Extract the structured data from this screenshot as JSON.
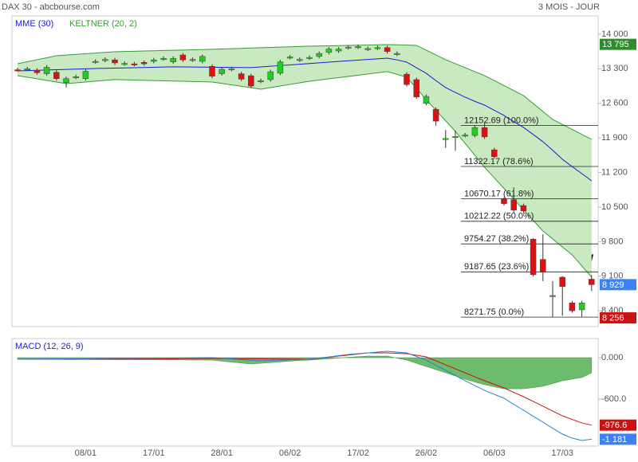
{
  "chart_data": [
    {
      "type": "candlestick",
      "title": "DAX 30 - abcbourse.com",
      "subtitle": "3 MOIS - JOUR",
      "categories": [
        null,
        null,
        null,
        null,
        null,
        null,
        null,
        "08/01",
        null,
        null,
        null,
        null,
        null,
        null,
        "17/01",
        null,
        null,
        null,
        null,
        null,
        null,
        "28/01",
        null,
        null,
        null,
        null,
        null,
        null,
        "06/02",
        null,
        null,
        null,
        null,
        null,
        null,
        "17/02",
        null,
        null,
        null,
        null,
        null,
        null,
        "26/02",
        null,
        null,
        null,
        null,
        null,
        null,
        "06/03",
        null,
        null,
        null,
        null,
        null,
        null,
        "17/03",
        null,
        null,
        null
      ],
      "open": [
        13280,
        13290,
        13270,
        13200,
        13230,
        13020,
        13130,
        13100,
        13440,
        13470,
        13480,
        13400,
        13400,
        13430,
        13450,
        13500,
        13440,
        13580,
        13480,
        13450,
        13350,
        13200,
        13290,
        13200,
        13160,
        13050,
        13080,
        13210,
        13530,
        13480,
        13520,
        13550,
        13630,
        13660,
        13730,
        13740,
        13700,
        13720,
        13730,
        13600,
        13190,
        13080,
        12600,
        12480,
        11880,
        11920,
        11950,
        11950,
        12110,
        11660,
        10660,
        10650,
        10530,
        9850,
        9440,
        8700,
        9080,
        8560,
        8420,
        9040
      ],
      "high": [
        13320,
        13340,
        13310,
        13370,
        13270,
        13140,
        13180,
        13290,
        13490,
        13530,
        13520,
        13450,
        13440,
        13470,
        13520,
        13550,
        13550,
        13620,
        13530,
        13590,
        13390,
        13330,
        13340,
        13240,
        13200,
        13100,
        13280,
        13480,
        13580,
        13530,
        13570,
        13650,
        13740,
        13740,
        13780,
        13790,
        13750,
        13770,
        13770,
        13650,
        13230,
        13120,
        12780,
        12520,
        12060,
        12050,
        12000,
        12150,
        12200,
        11700,
        10700,
        10900,
        10570,
        9870,
        9950,
        9000,
        9100,
        8600,
        8600,
        9120
      ],
      "low": [
        13240,
        13250,
        13180,
        13160,
        13060,
        12920,
        13090,
        13060,
        13400,
        13430,
        13380,
        13360,
        13350,
        13360,
        13410,
        13460,
        13400,
        13440,
        13440,
        13410,
        13110,
        13160,
        13250,
        13050,
        12910,
        13010,
        13040,
        13170,
        13490,
        13440,
        13480,
        13510,
        13590,
        13620,
        13690,
        13700,
        13660,
        13680,
        13610,
        13560,
        12940,
        12690,
        12560,
        12150,
        11700,
        11640,
        11910,
        11910,
        11880,
        11480,
        10530,
        10380,
        10380,
        9100,
        9000,
        8270,
        8300,
        8360,
        8280,
        8800
      ],
      "close": [
        13270,
        13300,
        13220,
        13330,
        13100,
        13100,
        13140,
        13250,
        13450,
        13490,
        13420,
        13410,
        13390,
        13400,
        13480,
        13510,
        13510,
        13480,
        13490,
        13550,
        13150,
        13290,
        13300,
        13090,
        12950,
        13060,
        13240,
        13440,
        13540,
        13490,
        13530,
        13610,
        13700,
        13700,
        13740,
        13750,
        13710,
        13730,
        13650,
        13610,
        12980,
        12730,
        12740,
        12240,
        11890,
        11930,
        11960,
        12110,
        11920,
        11520,
        10570,
        10440,
        10420,
        9130,
        9180,
        8710,
        8890,
        8400,
        8560,
        8929
      ],
      "up_color": "#22cc22",
      "down_color": "#dd1111",
      "series": [
        {
          "name": "MME (30)",
          "color": "#1a1adb",
          "values": [
            13258,
            13264,
            13270,
            13276,
            13282,
            13288,
            13294,
            13300,
            13306,
            13310,
            13314,
            13318,
            13322,
            13326,
            13330,
            13335,
            13339,
            13337,
            13335,
            13333,
            13331,
            13329,
            13327,
            13325,
            13323,
            13337,
            13351,
            13365,
            13379,
            13393,
            13407,
            13421,
            13435,
            13448,
            13462,
            13475,
            13489,
            13502,
            13516,
            13480,
            13435,
            13320,
            13210,
            13060,
            12919,
            12820,
            12726,
            12640,
            12564,
            12460,
            12355,
            12230,
            12113,
            11970,
            11823,
            11650,
            11468,
            11320,
            11177,
            11032
          ]
        },
        {
          "name": "KELTNER (20, 2)",
          "color": "#3a9a3a",
          "fill": "#c9e9c0",
          "upper": [
            13403,
            13443,
            13484,
            13524,
            13565,
            13578,
            13592,
            13605,
            13618,
            13632,
            13645,
            13650,
            13655,
            13660,
            13665,
            13670,
            13674,
            13679,
            13684,
            13689,
            13694,
            13700,
            13707,
            13713,
            13720,
            13726,
            13732,
            13739,
            13745,
            13752,
            13758,
            13762,
            13766,
            13770,
            13774,
            13778,
            13782,
            13786,
            13790,
            13785,
            13780,
            13774,
            13677,
            13581,
            13484,
            13403,
            13323,
            13242,
            13161,
            13060,
            12960,
            12859,
            12758,
            12597,
            12435,
            12274,
            12173,
            12073,
            11972,
            11871
          ],
          "lower": [
            13161,
            13129,
            13097,
            13064,
            13032,
            13000,
            13016,
            13032,
            13049,
            13065,
            13081,
            13076,
            13071,
            13066,
            13061,
            13057,
            13052,
            13047,
            13042,
            13037,
            13032,
            13003,
            12974,
            12945,
            12916,
            12887,
            12919,
            12951,
            12984,
            13016,
            13048,
            13072,
            13097,
            13121,
            13145,
            13169,
            13194,
            13218,
            13242,
            13186,
            13129,
            12903,
            12677,
            12462,
            12247,
            12032,
            11790,
            11548,
            11306,
            11091,
            10876,
            10661,
            10446,
            10231,
            10016,
            9855,
            9693,
            9532,
            9307,
            9081
          ]
        }
      ],
      "fibonacci": [
        {
          "value": 12152.69,
          "label": "12152.69 (100.0%)"
        },
        {
          "value": 11322.17,
          "label": "11322.17 (78.6%)"
        },
        {
          "value": 10670.17,
          "label": "10670.17 (61.8%)"
        },
        {
          "value": 10212.22,
          "label": "10212.22 (50.0%)"
        },
        {
          "value": 9754.27,
          "label": "9754.27 (38.2%)"
        },
        {
          "value": 9187.65,
          "label": "9187.65 (23.6%)"
        },
        {
          "value": 8271.75,
          "label": "8271.75 (0.0%)"
        }
      ],
      "price_badges": [
        {
          "value": 13795,
          "label": "13 795",
          "color": "#2e8b2e"
        },
        {
          "value": 8929,
          "label": "8 929",
          "color": "#3b82f6"
        },
        {
          "value": 8256,
          "label": "8 256",
          "color": "#cc1111"
        }
      ],
      "ylim": [
        8080,
        14370
      ],
      "yticks": [
        {
          "value": 14000,
          "label": "14 000"
        },
        {
          "value": 13300,
          "label": "13 300"
        },
        {
          "value": 12600,
          "label": "12 600"
        },
        {
          "value": 11900,
          "label": "11 900"
        },
        {
          "value": 11200,
          "label": "11 200"
        },
        {
          "value": 10500,
          "label": "10 500"
        },
        {
          "value": 9800,
          "label": "9 800"
        },
        {
          "value": 9100,
          "label": "9 100"
        },
        {
          "value": 8400,
          "label": "8 400"
        }
      ]
    },
    {
      "type": "macd",
      "title": "MACD (12, 26, 9)",
      "series": [
        {
          "name": "MACD",
          "color": "#2a7fd6",
          "values": [
            -23,
            -22,
            -21,
            -20,
            -19,
            -18,
            -16,
            -15,
            -14,
            -13,
            -12,
            -11,
            -10,
            -9,
            -8,
            -6,
            -5,
            -4,
            -3,
            -1,
            0,
            -9,
            -18,
            -28,
            -37,
            -46,
            -41,
            -37,
            -32,
            -28,
            -23,
            -6,
            11,
            29,
            46,
            58,
            69,
            81,
            92,
            81,
            69,
            17,
            -35,
            -110,
            -184,
            -259,
            -334,
            -404,
            -473,
            -531,
            -588,
            -675,
            -761,
            -848,
            -934,
            -1021,
            -1107,
            -1165,
            -1199,
            -1181
          ]
        },
        {
          "name": "Signal",
          "color": "#cc1111",
          "values": [
            -23,
            -22,
            -22,
            -21,
            -21,
            -20,
            -20,
            -19,
            -19,
            -18,
            -18,
            -17,
            -17,
            -16,
            -16,
            -15,
            -15,
            -14,
            -13,
            -13,
            -12,
            -13,
            -14,
            -15,
            -16,
            -17,
            -19,
            -20,
            -21,
            -22,
            -23,
            -8,
            7,
            23,
            38,
            54,
            69,
            69,
            69,
            64,
            58,
            35,
            12,
            -46,
            -104,
            -162,
            -219,
            -277,
            -334,
            -386,
            -438,
            -502,
            -565,
            -634,
            -703,
            -773,
            -842,
            -894,
            -945,
            -976.6
          ]
        },
        {
          "name": "Histogram",
          "color": "#6dbb6d",
          "values": [
            -23,
            -24,
            -24,
            -25,
            -25,
            -26,
            -27,
            -27,
            -28,
            -28,
            -29,
            -29,
            -30,
            -31,
            -31,
            -32,
            -32,
            -33,
            -34,
            -34,
            -35,
            -49,
            -64,
            -78,
            -92,
            -82,
            -71,
            -61,
            -50,
            -40,
            -35,
            -25,
            -15,
            -5,
            5,
            14,
            23,
            23,
            23,
            -6,
            -35,
            -81,
            -127,
            -173,
            -219,
            -265,
            -311,
            -352,
            -392,
            -421,
            -450,
            -450,
            -450,
            -433,
            -415,
            -375,
            -334,
            -311,
            -288,
            -219
          ]
        }
      ],
      "badges": [
        {
          "value": -976.6,
          "color": "#cc1111"
        },
        {
          "value": -1181,
          "label": "-1 181",
          "color": "#3b82f6"
        }
      ],
      "ylim": [
        -1280,
        277
      ],
      "yticks": [
        {
          "value": 0,
          "label": "0.000"
        },
        {
          "value": -600,
          "label": "-600.0"
        }
      ]
    }
  ]
}
